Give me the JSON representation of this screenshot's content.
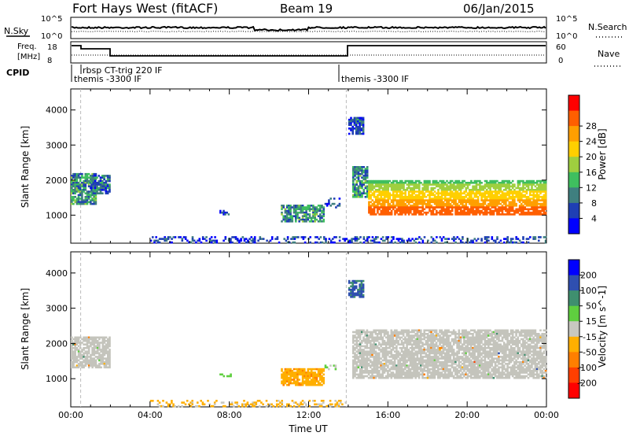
{
  "header": {
    "title": "Fort Hays West (fitACF)",
    "beam": "Beam 19",
    "date": "06/Jan/2015"
  },
  "noise_panel": {
    "left_label": "N.Sky",
    "left_ticks": [
      "10^5",
      "10^0"
    ],
    "right_ticks": [
      "10^5",
      "10^0"
    ],
    "right_label": "N.Search"
  },
  "freq_panel": {
    "left_label_line1": "Freq.",
    "left_label_line2": "[MHz]",
    "left_ticks": [
      "18",
      "8"
    ],
    "right_ticks": [
      "60",
      "0"
    ],
    "right_label": "Nave"
  },
  "cpid": {
    "label": "CPID",
    "entries": [
      {
        "text": "rbsp CT-trig 220 IF",
        "start_hour": 0.5
      },
      {
        "text": "themis -3300 IF",
        "start_hour": 0.0
      },
      {
        "text": "themis -3300 IF",
        "start_hour": 13.9
      }
    ]
  },
  "colors": {
    "power_scale": [
      "#0000ff",
      "#1f3fb4",
      "#3f7f7f",
      "#3fbf5f",
      "#9fcf3f",
      "#ffcf00",
      "#ff9f00",
      "#ff5f00",
      "#ff0000"
    ],
    "velocity_scale": [
      "#0000ff",
      "#2f4fb0",
      "#3f8f6f",
      "#5fcf3f",
      "#c8c8c0",
      "#ffaf00",
      "#ff7f00",
      "#ff3f00",
      "#ff0000"
    ],
    "ground_scatter": "#c4c4bc"
  },
  "chart_data": [
    {
      "type": "heatmap",
      "name": "power",
      "ylabel": "Slant Range [km]",
      "xlabel": "",
      "y_ticks": [
        "1000",
        "2000",
        "3000",
        "4000"
      ],
      "ylim": [
        200,
        4600
      ],
      "xlim": [
        0,
        24
      ],
      "colorbar_label": "Power [dB]",
      "colorbar_ticks": [
        "4",
        "8",
        "12",
        "16",
        "20",
        "24",
        "28"
      ],
      "clim": [
        0,
        32
      ],
      "regions": [
        {
          "x0": 0.0,
          "x1": 1.3,
          "y0": 1300,
          "y1": 2200,
          "value": 10
        },
        {
          "x0": 1.0,
          "x1": 2.0,
          "y0": 1600,
          "y1": 2150,
          "value": 7
        },
        {
          "x0": 7.5,
          "x1": 8.0,
          "y0": 1000,
          "y1": 1150,
          "value": 4
        },
        {
          "x0": 10.6,
          "x1": 12.8,
          "y0": 800,
          "y1": 1300,
          "value": 10
        },
        {
          "x0": 12.8,
          "x1": 13.6,
          "y0": 1200,
          "y1": 1500,
          "value": 4
        },
        {
          "x0": 14.2,
          "x1": 15.0,
          "y0": 1500,
          "y1": 2400,
          "value": 10
        },
        {
          "x0": 15.0,
          "x1": 24.0,
          "y0": 1000,
          "y1": 2000,
          "value": 18
        },
        {
          "x0": 14.0,
          "x1": 14.8,
          "y0": 3300,
          "y1": 3800,
          "value": 6
        },
        {
          "x0": 4.0,
          "x1": 24.0,
          "y0": 200,
          "y1": 400,
          "value": 5
        }
      ]
    },
    {
      "type": "heatmap",
      "name": "velocity",
      "ylabel": "Slant Range [km]",
      "xlabel": "Time UT",
      "x_ticks": [
        "00:00",
        "04:00",
        "08:00",
        "12:00",
        "16:00",
        "20:00",
        "00:00"
      ],
      "y_ticks": [
        "1000",
        "2000",
        "3000",
        "4000"
      ],
      "ylim": [
        200,
        4600
      ],
      "xlim": [
        0,
        24
      ],
      "colorbar_label": "Velocity [m s^-1]",
      "colorbar_ticks": [
        "200",
        "100",
        "50",
        "15",
        "-15",
        "-50",
        "-100",
        "-200"
      ],
      "clim": [
        -250,
        250
      ],
      "regions": [
        {
          "x0": 0.0,
          "x1": 2.0,
          "y0": 1300,
          "y1": 2200,
          "value": 0,
          "ground_scatter": true
        },
        {
          "x0": 7.5,
          "x1": 8.2,
          "y0": 1050,
          "y1": 1150,
          "value": 40
        },
        {
          "x0": 10.6,
          "x1": 12.8,
          "y0": 800,
          "y1": 1300,
          "value": -60
        },
        {
          "x0": 12.8,
          "x1": 13.4,
          "y0": 1250,
          "y1": 1400,
          "value": 30
        },
        {
          "x0": 14.2,
          "x1": 24.0,
          "y0": 1000,
          "y1": 2400,
          "value": 0,
          "ground_scatter": true
        },
        {
          "x0": 14.0,
          "x1": 14.8,
          "y0": 3300,
          "y1": 3800,
          "value": 150
        },
        {
          "x0": 4.0,
          "x1": 14.0,
          "y0": 200,
          "y1": 400,
          "value": -40
        }
      ]
    }
  ]
}
